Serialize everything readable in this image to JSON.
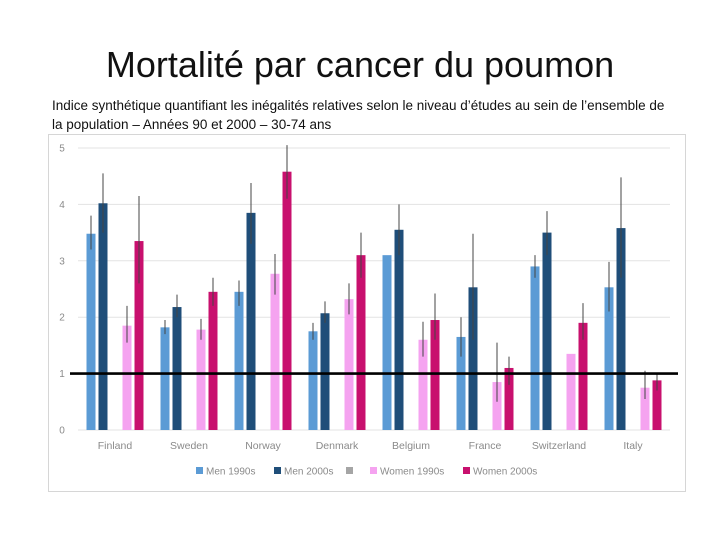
{
  "title": "Mortalité par cancer du poumon",
  "subtitle": "Indice synthétique quantifiant les inégalités relatives selon le niveau d’études au sein de l’ensemble de la population – Années 90 et 2000 – 30-74 ans",
  "chart_data": {
    "type": "bar",
    "title": "Mortalité par cancer du poumon",
    "xlabel": "",
    "ylabel": "",
    "ylim": [
      0,
      5
    ],
    "yticks": [
      "0",
      "1",
      "2",
      "3",
      "4",
      "5"
    ],
    "reference_line": 1,
    "grid": true,
    "legend_position": "bottom",
    "categories": [
      "Finland",
      "Sweden",
      "Norway",
      "Denmark",
      "Belgium",
      "France",
      "Switzerland",
      "Italy"
    ],
    "series": [
      {
        "name": "Men 1990s",
        "color": "#5b9bd5",
        "values": [
          3.48,
          1.82,
          2.45,
          1.75,
          3.1,
          1.65,
          2.9,
          2.53
        ],
        "err_low": [
          3.2,
          1.7,
          2.2,
          1.6,
          null,
          1.3,
          2.7,
          2.1
        ],
        "err_high": [
          3.8,
          1.95,
          2.65,
          1.9,
          null,
          2.0,
          3.1,
          2.98
        ]
      },
      {
        "name": "Men 2000s",
        "color": "#1f4e79",
        "values": [
          4.02,
          2.18,
          3.85,
          2.07,
          3.55,
          2.53,
          3.5,
          3.58
        ],
        "err_low": [
          3.5,
          2.0,
          3.3,
          1.9,
          3.1,
          1.6,
          3.1,
          2.7
        ],
        "err_high": [
          4.55,
          2.4,
          4.38,
          2.28,
          4.0,
          3.48,
          3.88,
          4.48
        ]
      },
      {
        "name": "",
        "color": "#a5a5a5",
        "values": [
          null,
          null,
          null,
          null,
          null,
          null,
          null,
          null
        ]
      },
      {
        "name": "Women 1990s",
        "color": "#f5a3f0",
        "values": [
          1.85,
          1.78,
          2.77,
          2.32,
          1.6,
          0.85,
          1.35,
          0.75
        ],
        "err_low": [
          1.55,
          1.6,
          2.4,
          2.05,
          1.3,
          0.5,
          null,
          0.55
        ],
        "err_high": [
          2.2,
          1.97,
          3.12,
          2.6,
          1.92,
          1.55,
          null,
          1.05
        ]
      },
      {
        "name": "Women 2000s",
        "color": "#c8106e",
        "values": [
          3.35,
          2.45,
          4.58,
          3.1,
          1.95,
          1.1,
          1.9,
          0.88
        ],
        "err_low": [
          2.6,
          2.2,
          4.1,
          2.7,
          1.6,
          0.8,
          1.6,
          0.7
        ],
        "err_high": [
          4.15,
          2.7,
          5.05,
          3.5,
          2.42,
          1.3,
          2.25,
          1.0
        ]
      }
    ]
  }
}
